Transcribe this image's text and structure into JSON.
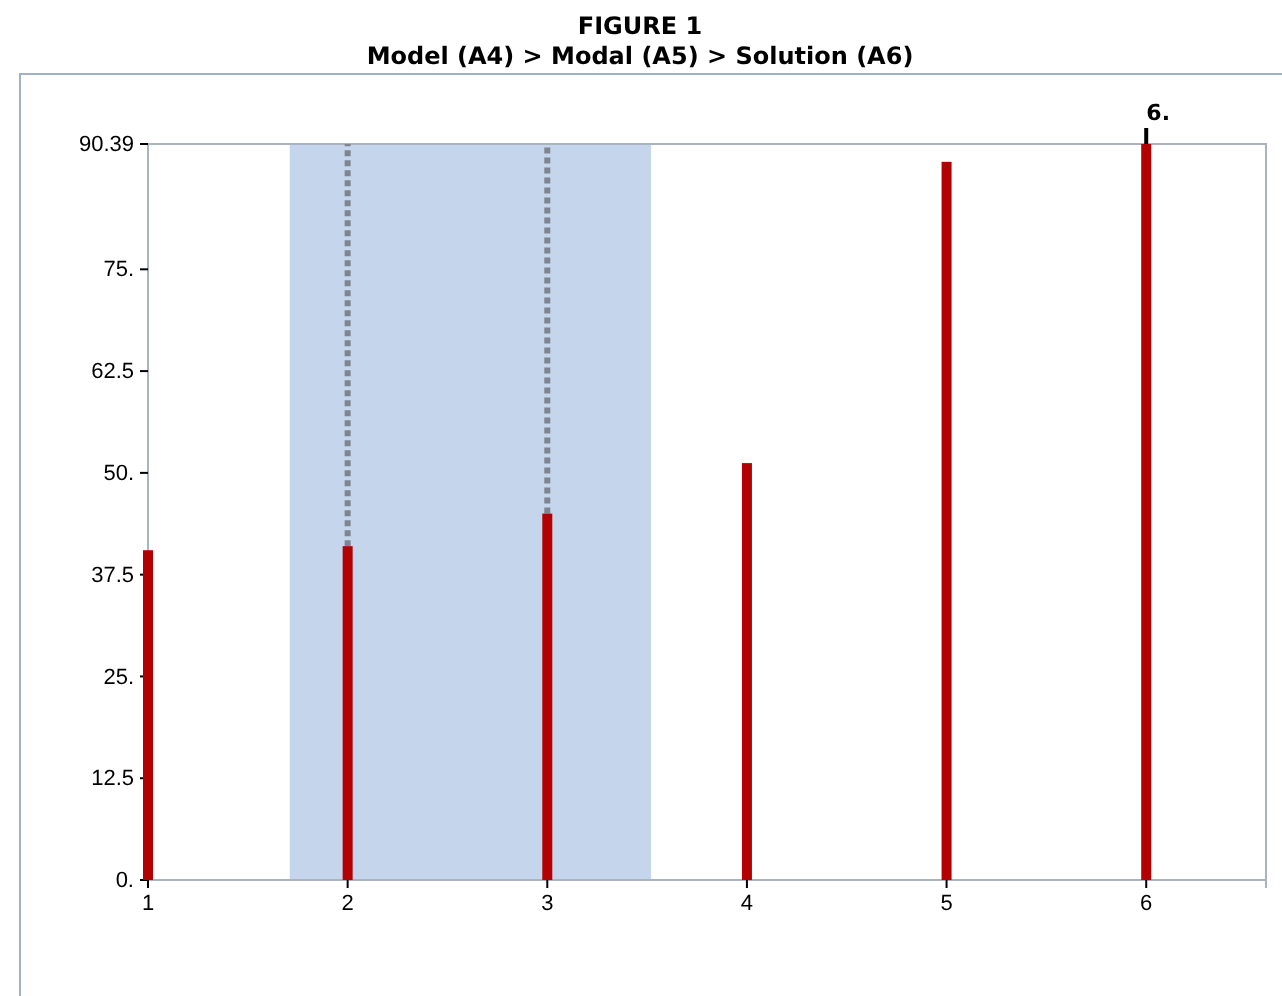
{
  "chart_data": {
    "type": "bar",
    "title": "FIGURE 1",
    "subtitle": "Model (A4) > Modal (A5) > Solution (A6)",
    "x": [
      1,
      2,
      3,
      4,
      5,
      6
    ],
    "values": [
      40.5,
      41,
      45,
      51.2,
      88.2,
      90.39
    ],
    "color": "#b30000",
    "errors": [
      null,
      [
        41,
        90.39
      ],
      [
        45,
        90.39
      ],
      null,
      null,
      null
    ],
    "xlim": [
      1,
      6.6
    ],
    "xticks": [
      1,
      2,
      3,
      4,
      5,
      6
    ],
    "ylim": [
      0,
      90.39
    ],
    "yticks": [
      {
        "value": 0,
        "label": "0."
      },
      12.5,
      {
        "value": 25,
        "label": "25."
      },
      37.5,
      {
        "value": 50,
        "label": "50."
      },
      62.5,
      {
        "value": 75,
        "label": "75."
      },
      90.39
    ],
    "bands": [
      {
        "axis": "x",
        "from": 1.71,
        "to": 3.52,
        "color": "#c5d5ec"
      }
    ],
    "annotations": [
      {
        "text": "6.",
        "x": 6,
        "y": 90.39
      }
    ]
  }
}
